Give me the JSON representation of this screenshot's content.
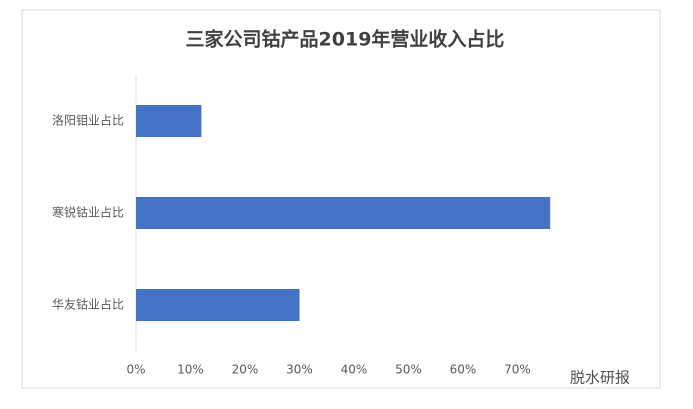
{
  "chart_data": {
    "type": "barh",
    "title": "三家公司钴产品2019年营业收入占比",
    "categories": [
      "洛阳钼业占比",
      "寒锐钴业占比",
      "华友钴业占比"
    ],
    "values": [
      12,
      76,
      30
    ],
    "color": "#4472c4",
    "xlim": [
      0,
      80
    ],
    "xticks": [
      {
        "value": 0,
        "label": "0%"
      },
      {
        "value": 10,
        "label": "10%"
      },
      {
        "value": 20,
        "label": "20%"
      },
      {
        "value": 30,
        "label": "30%"
      },
      {
        "value": 40,
        "label": "40%"
      },
      {
        "value": 50,
        "label": "50%"
      },
      {
        "value": 60,
        "label": "60%"
      },
      {
        "value": 70,
        "label": "70%"
      }
    ],
    "grid": false,
    "watermark": "脱水研报"
  }
}
